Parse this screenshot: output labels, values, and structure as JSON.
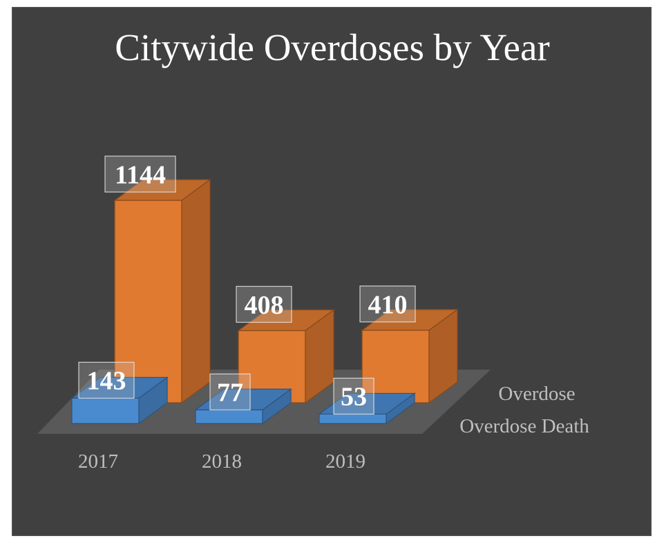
{
  "chart_data": {
    "type": "bar",
    "title": "Citywide Overdoses by Year",
    "xlabel": "",
    "ylabel": "",
    "categories": [
      "2017",
      "2018",
      "2019"
    ],
    "series": [
      {
        "name": "Overdose",
        "values": [
          1144,
          408,
          410
        ],
        "color": "#E07A30"
      },
      {
        "name": "Overdose Death",
        "values": [
          143,
          77,
          53
        ],
        "color": "#4A8BD0"
      }
    ],
    "ylim": [
      0,
      1144
    ],
    "grid": false,
    "legend": "depth-axis-right",
    "style": "3d-column"
  },
  "colors": {
    "background": "#404040",
    "floor": "#595959",
    "text_light": "#bfbfbf",
    "text_white": "#ffffff"
  }
}
